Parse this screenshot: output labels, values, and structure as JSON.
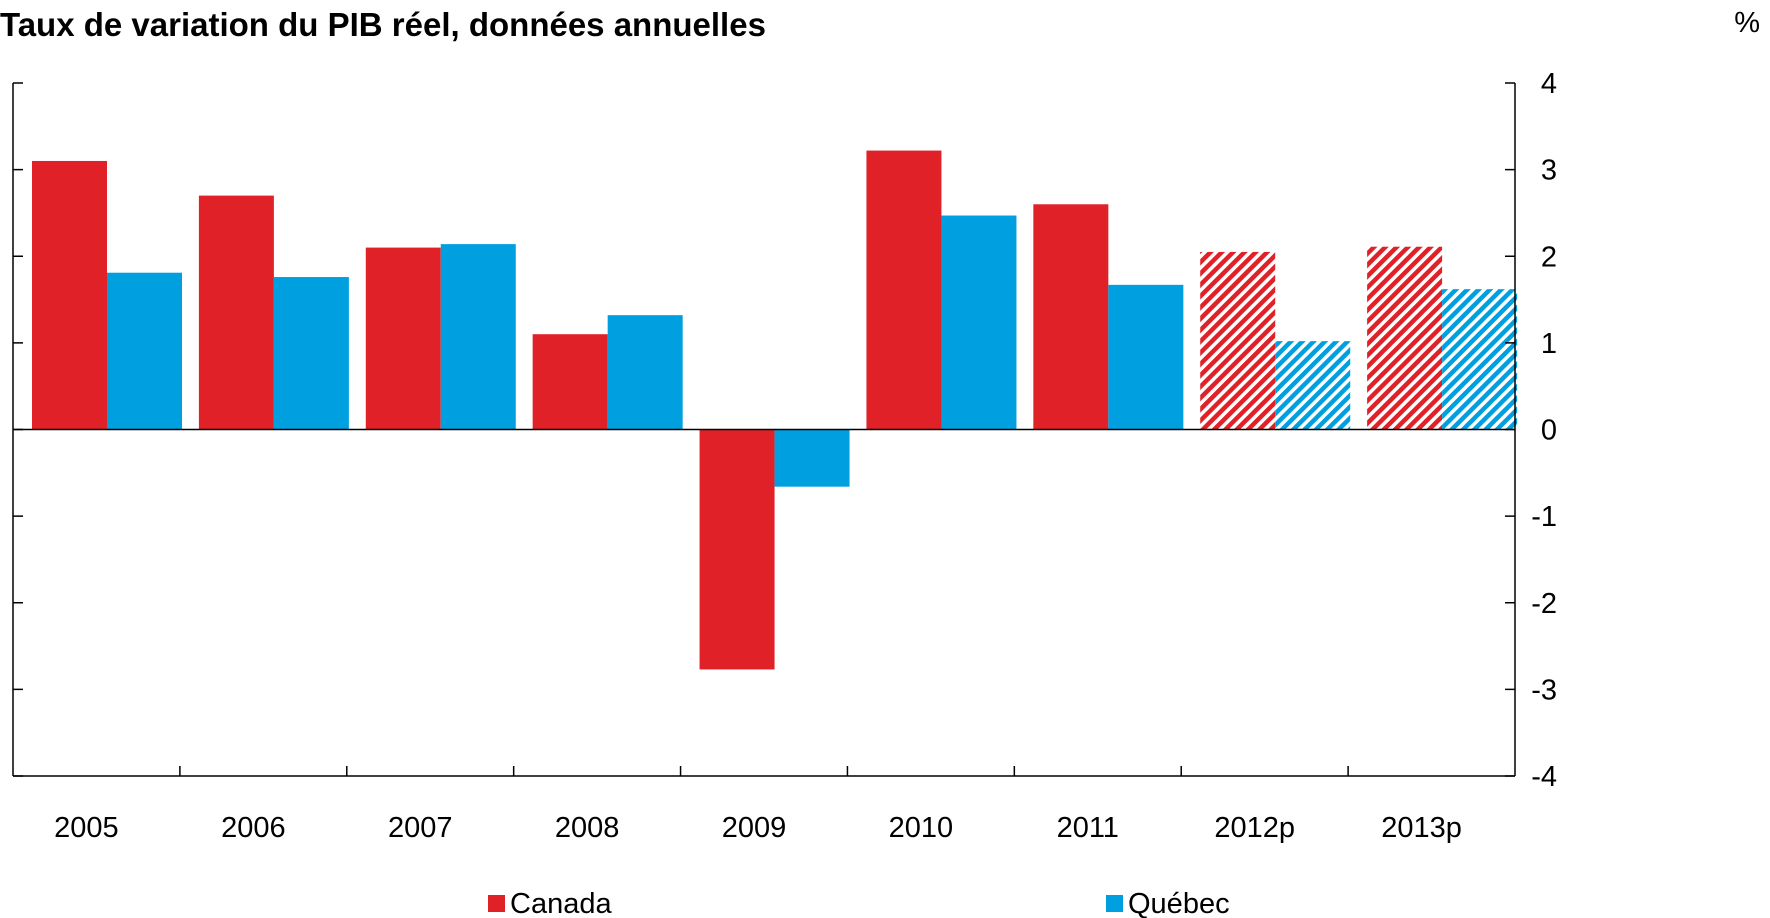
{
  "chart_data": {
    "type": "bar",
    "title": "Taux de variation du PIB réel, données annuelles",
    "unit_label": "%",
    "categories": [
      "2005",
      "2006",
      "2007",
      "2008",
      "2009",
      "2010",
      "2011",
      "2012p",
      "2013p"
    ],
    "projected_categories": [
      "2012p",
      "2013p"
    ],
    "series": [
      {
        "name": "Canada",
        "color": "#e02127",
        "values": [
          3.1,
          2.7,
          2.1,
          1.1,
          -2.77,
          3.22,
          2.6,
          2.05,
          2.11
        ]
      },
      {
        "name": "Québec",
        "color": "#009fe0",
        "values": [
          1.81,
          1.76,
          2.14,
          1.32,
          -0.66,
          2.47,
          1.67,
          1.02,
          1.62
        ]
      }
    ],
    "ylim": [
      -4,
      4
    ],
    "yticks": [
      "-4",
      "-3",
      "-2",
      "-1",
      "0",
      "1",
      "2",
      "3",
      "4"
    ],
    "ytick_values": [
      -4,
      -3,
      -2,
      -1,
      0,
      1,
      2,
      3,
      4
    ],
    "y_axis_side": "right",
    "grid": false,
    "legend_position": "bottom"
  }
}
